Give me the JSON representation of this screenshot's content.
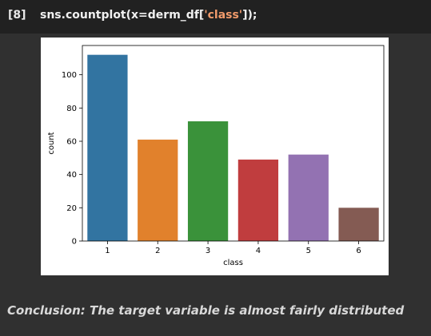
{
  "code_cell": {
    "prompt": "[8]",
    "code_prefix": "sns.countplot(x=derm_df[",
    "code_string": "'class'",
    "code_suffix": "]);"
  },
  "chart_data": {
    "type": "bar",
    "categories": [
      "1",
      "2",
      "3",
      "4",
      "5",
      "6"
    ],
    "values": [
      112,
      61,
      72,
      49,
      52,
      20
    ],
    "colors": [
      "#3274a1",
      "#e1812c",
      "#3a923a",
      "#c03d3e",
      "#9372b2",
      "#845b53"
    ],
    "xlabel": "class",
    "ylabel": "count",
    "ylim": [
      0,
      117.6
    ],
    "yticks": [
      0,
      20,
      40,
      60,
      80,
      100
    ],
    "grid": false,
    "legend": "none"
  },
  "markdown": {
    "conclusion": "Conclusion: The target variable is almost fairly distributed"
  }
}
